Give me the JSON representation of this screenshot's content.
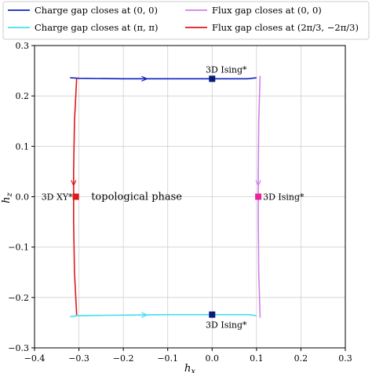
{
  "chart_data": {
    "type": "line",
    "xlabel": "h_x",
    "ylabel": "h_z",
    "xlim": [
      -0.4,
      0.3
    ],
    "ylim": [
      -0.3,
      0.3
    ],
    "grid": true,
    "legend_placement": "top",
    "x_ticks": [
      "−0.4",
      "−0.3",
      "−0.2",
      "−0.1",
      "0.0",
      "0.1",
      "0.2",
      "0.3"
    ],
    "y_ticks": [
      "−0.3",
      "−0.2",
      "−0.1",
      "0.0",
      "0.1",
      "0.2",
      "0.3"
    ],
    "x_tick_values": [
      -0.4,
      -0.3,
      -0.2,
      -0.1,
      0.0,
      0.1,
      0.2,
      0.3
    ],
    "y_tick_values": [
      -0.3,
      -0.2,
      -0.1,
      0.0,
      0.1,
      0.2,
      0.3
    ],
    "series": [
      {
        "name": "Charge gap closes at (0, 0)",
        "color": "#1020c0",
        "points": [
          [
            -0.32,
            0.236
          ],
          [
            -0.3,
            0.235
          ],
          [
            -0.2,
            0.234
          ],
          [
            -0.1,
            0.234
          ],
          [
            0.0,
            0.234
          ],
          [
            0.08,
            0.234
          ],
          [
            0.1,
            0.236
          ]
        ]
      },
      {
        "name": "Charge gap closes at (π, π)",
        "color": "#40e0f0",
        "points": [
          [
            -0.32,
            -0.238
          ],
          [
            -0.3,
            -0.236
          ],
          [
            -0.2,
            -0.235
          ],
          [
            -0.1,
            -0.234
          ],
          [
            0.0,
            -0.234
          ],
          [
            0.08,
            -0.234
          ],
          [
            0.1,
            -0.236
          ]
        ]
      },
      {
        "name": "Flux gap closes at (0, 0)",
        "color": "#d080e8",
        "points": [
          [
            0.108,
            0.24
          ],
          [
            0.105,
            0.15
          ],
          [
            0.104,
            0.05
          ],
          [
            0.104,
            0.0
          ],
          [
            0.104,
            -0.05
          ],
          [
            0.105,
            -0.15
          ],
          [
            0.108,
            -0.24
          ]
        ]
      },
      {
        "name": "Flux gap closes at (2π/3, −2π/3)",
        "color": "#e01818",
        "points": [
          [
            -0.305,
            0.235
          ],
          [
            -0.31,
            0.15
          ],
          [
            -0.312,
            0.05
          ],
          [
            -0.312,
            0.0
          ],
          [
            -0.312,
            -0.05
          ],
          [
            -0.31,
            -0.15
          ],
          [
            -0.305,
            -0.235
          ]
        ]
      }
    ],
    "markers": [
      {
        "x": 0.0,
        "y": 0.234,
        "color": "#0a1a7a",
        "shape": "square"
      },
      {
        "x": 0.0,
        "y": -0.234,
        "color": "#0a1a7a",
        "shape": "square"
      },
      {
        "x": 0.104,
        "y": 0.0,
        "color": "#e8259a",
        "shape": "square"
      },
      {
        "x": -0.307,
        "y": 0.0,
        "color": "#e01818",
        "shape": "square"
      }
    ],
    "annotations": [
      {
        "text": "3D Ising*",
        "x": 0.0,
        "y": 0.234,
        "anchor": "above"
      },
      {
        "text": "3D Ising*",
        "x": 0.0,
        "y": -0.234,
        "anchor": "below"
      },
      {
        "text": "3D Ising*",
        "x": 0.104,
        "y": 0.0,
        "anchor": "right"
      },
      {
        "text": "3D XY*",
        "x": -0.307,
        "y": 0.0,
        "anchor": "left"
      },
      {
        "text": "topological phase",
        "x": -0.17,
        "y": 0.0,
        "anchor": "center"
      }
    ]
  }
}
